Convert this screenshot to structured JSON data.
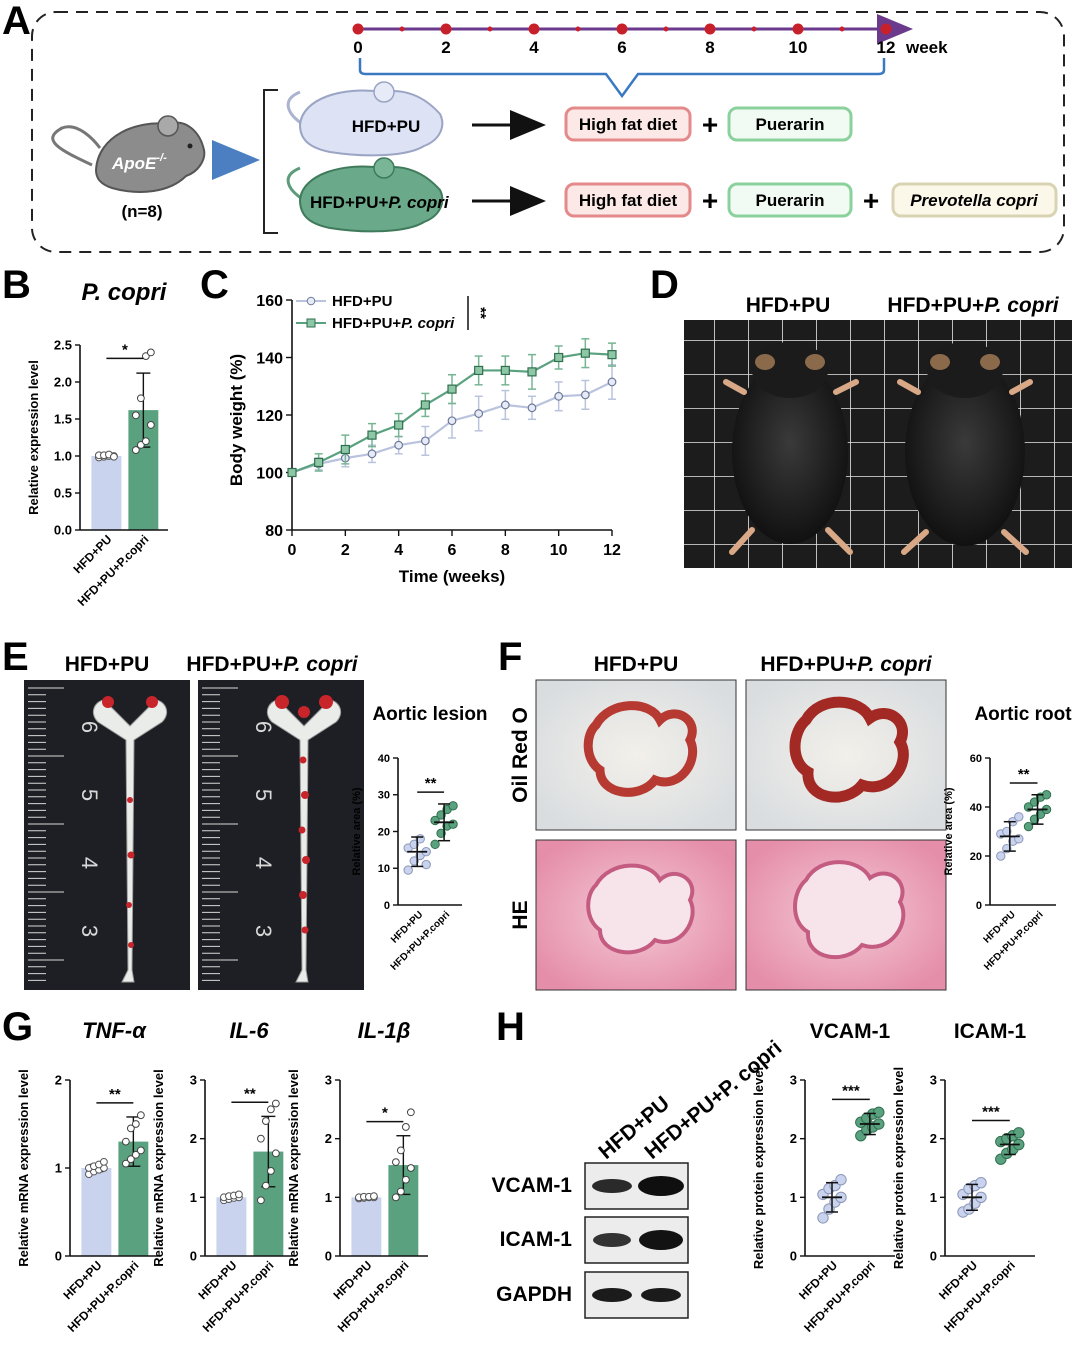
{
  "colors": {
    "hfd": "#c9d3ee",
    "hfd_edge": "#8b97b8",
    "copri": "#5aa27f",
    "copri_dark": "#2f6f4e",
    "diet_border": "#e48a8a",
    "diet_fill": "#fde8e8",
    "pu_border": "#8ad19c",
    "pu_fill": "#f2fbf3",
    "copri_box_border": "#d8d3b2",
    "copri_box_fill": "#fbf8ea",
    "timeline": "#6b3a8c",
    "timeline_dot": "#c8202a",
    "arrow_blue": "#4b7fc1",
    "brace": "#3a79c2"
  },
  "panel_labels": [
    "A",
    "B",
    "C",
    "D",
    "E",
    "F",
    "G",
    "H"
  ],
  "panelA": {
    "ticks": [
      "0",
      "2",
      "4",
      "6",
      "8",
      "10",
      "12"
    ],
    "unit": "week",
    "mouse_label": "ApoE",
    "mouse_label_sup": "-/-",
    "n_label": "(n=8)",
    "group1": "HFD+PU",
    "group2_prefix": "HFD+PU+",
    "group2_italic": "P. copri",
    "box_hfd": "High fat diet",
    "box_pu": "Puerarin",
    "box_copri": "Prevotella copri",
    "plus": "+"
  },
  "groups": {
    "g1": "HFD+PU",
    "g2_prefix": "HFD+PU+",
    "g2_italic": "P. copri",
    "g2_axis": "HFD+PU+P.copri"
  },
  "photo_titles": {
    "d_left": "HFD+PU",
    "d_right_prefix": "HFD+PU+",
    "d_right_italic": "P. copri",
    "e_left": "HFD+PU",
    "e_right_prefix": "HFD+PU+",
    "e_right_italic": "P. copri",
    "f_left": "HFD+PU",
    "f_right_prefix": "HFD+PU+",
    "f_right_italic": "P. copri",
    "f_row1": "Oil Red O",
    "f_row2": "HE"
  },
  "ruler_numbers": [
    "6",
    "5",
    "4",
    "3"
  ],
  "western": {
    "rows": [
      "VCAM-1",
      "ICAM-1",
      "GAPDH"
    ],
    "lanes": [
      "HFD+PU",
      "HFD+PU+P. copri"
    ]
  },
  "chart_data": [
    {
      "id": "B",
      "type": "bar",
      "title": "P. copri",
      "ylabel": "Relative expression level",
      "categories": [
        "HFD+PU",
        "HFD+PU+P.copri"
      ],
      "values": [
        1.0,
        1.62
      ],
      "errors": [
        0.02,
        0.5
      ],
      "points": [
        [
          0.98,
          0.99,
          1.0,
          1.0,
          1.01,
          1.01,
          1.02,
          0.99
        ],
        [
          1.08,
          1.15,
          1.2,
          1.42,
          1.55,
          1.78,
          2.35,
          2.4
        ]
      ],
      "ylim": [
        0,
        2.5
      ],
      "yticks": [
        "0.0",
        "0.5",
        "1.0",
        "1.5",
        "2.0",
        "2.5"
      ],
      "significance": "*"
    },
    {
      "id": "C",
      "type": "line",
      "xlabel": "Time (weeks)",
      "ylabel": "Body weight (%)",
      "x": [
        0,
        1,
        2,
        3,
        4,
        5,
        6,
        7,
        8,
        9,
        10,
        11,
        12
      ],
      "series": [
        {
          "name": "HFD+PU",
          "values": [
            100,
            103,
            105,
            106.5,
            109.5,
            111,
            118,
            120.5,
            123.5,
            122.5,
            126.5,
            127,
            131.5
          ],
          "errors": [
            0,
            2,
            3,
            3,
            3,
            5,
            6,
            6,
            5,
            4,
            5,
            5,
            6
          ]
        },
        {
          "name": "HFD+PU+P. copri",
          "values": [
            100,
            103.5,
            108,
            113,
            116.5,
            123.5,
            129,
            135.5,
            135.5,
            135,
            140,
            141.5,
            141
          ],
          "errors": [
            0,
            3,
            5,
            4,
            4,
            4,
            5,
            5,
            5,
            6,
            4,
            5,
            4
          ]
        }
      ],
      "xlim": [
        0,
        12
      ],
      "ylim": [
        80,
        160
      ],
      "xticks": [
        "0",
        "2",
        "4",
        "6",
        "8",
        "10",
        "12"
      ],
      "yticks": [
        "80",
        "100",
        "120",
        "140",
        "160"
      ],
      "significance": "**"
    },
    {
      "id": "E",
      "type": "scatter",
      "title": "Aortic lesion",
      "ylabel": "Relative area (%)",
      "categories": [
        "HFD+PU",
        "HFD+PU+P.copri"
      ],
      "means": [
        14.5,
        22.5
      ],
      "sds": [
        4,
        5
      ],
      "points": [
        [
          9.5,
          12,
          13.5,
          14.5,
          15.5,
          16.5,
          18,
          11
        ],
        [
          16.5,
          19.5,
          21.5,
          22,
          23,
          24.5,
          26,
          27
        ]
      ],
      "ylim": [
        0,
        40
      ],
      "yticks": [
        "0",
        "10",
        "20",
        "30",
        "40"
      ],
      "significance": "**"
    },
    {
      "id": "F",
      "type": "scatter",
      "title": "Aortic root",
      "ylabel": "Relative area (%)",
      "categories": [
        "HFD+PU",
        "HFD+PU+P.copri"
      ],
      "means": [
        28,
        39
      ],
      "sds": [
        6,
        6
      ],
      "points": [
        [
          20,
          23,
          26,
          27,
          29,
          30,
          34,
          36
        ],
        [
          32,
          35,
          37,
          39,
          40,
          42,
          44,
          45
        ]
      ],
      "ylim": [
        0,
        60
      ],
      "yticks": [
        "0",
        "20",
        "40",
        "60"
      ],
      "significance": "**"
    },
    {
      "id": "G1",
      "type": "bar",
      "title": "TNF-α",
      "ylabel": "Relative mRNA expression level",
      "categories": [
        "HFD+PU",
        "HFD+PU+P.copri"
      ],
      "values": [
        1.0,
        1.3
      ],
      "errors": [
        0.04,
        0.28
      ],
      "points": [
        [
          0.93,
          0.96,
          0.98,
          1.0,
          1.0,
          1.02,
          1.04,
          1.07
        ],
        [
          1.05,
          1.1,
          1.15,
          1.2,
          1.3,
          1.45,
          1.5,
          1.6
        ]
      ],
      "ylim": [
        0,
        2
      ],
      "yticks": [
        "0",
        "1",
        "2"
      ],
      "significance": "**"
    },
    {
      "id": "G2",
      "type": "bar",
      "title": "IL-6",
      "ylabel": "Relative mRNA expression level",
      "categories": [
        "HFD+PU",
        "HFD+PU+P.copri"
      ],
      "values": [
        1.0,
        1.78
      ],
      "errors": [
        0.04,
        0.6
      ],
      "points": [
        [
          0.95,
          0.97,
          0.99,
          1.0,
          1.0,
          1.02,
          1.03,
          1.05
        ],
        [
          0.95,
          1.2,
          1.45,
          1.75,
          2.0,
          2.3,
          2.5,
          2.6
        ]
      ],
      "ylim": [
        0,
        3
      ],
      "yticks": [
        "0",
        "1",
        "2",
        "3"
      ],
      "significance": "**"
    },
    {
      "id": "G3",
      "type": "bar",
      "title": "IL-1β",
      "ylabel": "Relative mRNA expression level",
      "categories": [
        "HFD+PU",
        "HFD+PU+P.copri"
      ],
      "values": [
        1.0,
        1.55
      ],
      "errors": [
        0.02,
        0.5
      ],
      "points": [
        [
          0.98,
          0.99,
          1.0,
          1.0,
          1.0,
          1.01,
          1.01,
          1.02
        ],
        [
          1.0,
          1.1,
          1.3,
          1.5,
          1.6,
          1.8,
          2.2,
          2.45
        ]
      ],
      "ylim": [
        0,
        3
      ],
      "yticks": [
        "0",
        "1",
        "2",
        "3"
      ],
      "significance": "*"
    },
    {
      "id": "H1",
      "type": "scatter",
      "title": "VCAM-1",
      "ylabel": "Relative protein expression level",
      "categories": [
        "HFD+PU",
        "HFD+PU+P.copri"
      ],
      "means": [
        1.0,
        2.25
      ],
      "sds": [
        0.25,
        0.18
      ],
      "points": [
        [
          0.65,
          0.8,
          0.92,
          1.0,
          1.05,
          1.15,
          1.2,
          1.3
        ],
        [
          2.05,
          2.15,
          2.2,
          2.25,
          2.28,
          2.35,
          2.42,
          2.45
        ]
      ],
      "ylim": [
        0,
        3
      ],
      "yticks": [
        "0",
        "1",
        "2",
        "3"
      ],
      "significance": "***"
    },
    {
      "id": "H2",
      "type": "scatter",
      "title": "ICAM-1",
      "ylabel": "Relative protein expression level",
      "categories": [
        "HFD+PU",
        "HFD+PU+P.copri"
      ],
      "means": [
        1.0,
        1.9
      ],
      "sds": [
        0.22,
        0.17
      ],
      "points": [
        [
          0.75,
          0.8,
          0.9,
          1.0,
          1.05,
          1.15,
          1.2,
          1.25
        ],
        [
          1.65,
          1.75,
          1.82,
          1.9,
          1.95,
          2.0,
          2.05,
          2.1
        ]
      ],
      "ylim": [
        0,
        3
      ],
      "yticks": [
        "0",
        "1",
        "2",
        "3"
      ],
      "significance": "***"
    }
  ]
}
